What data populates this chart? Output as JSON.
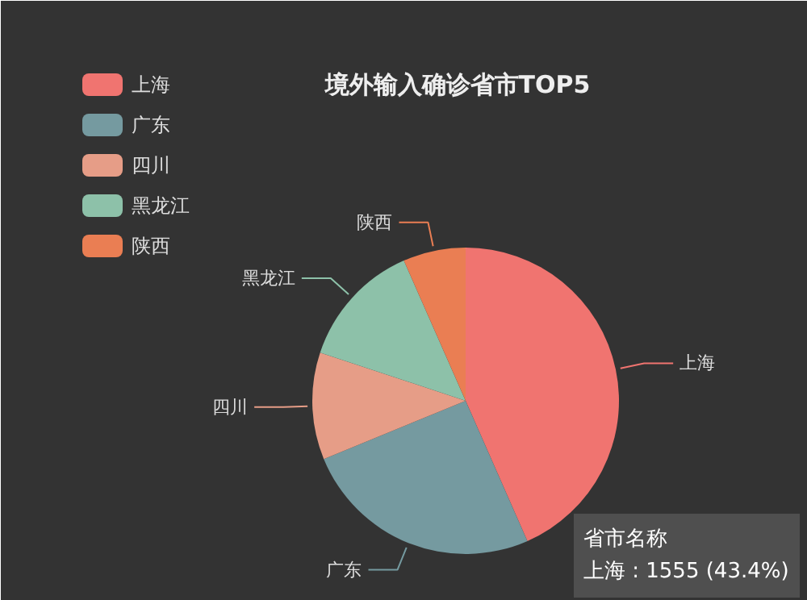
{
  "chart_data": {
    "type": "pie",
    "title": "境外输入确诊省市TOP5",
    "categories": [
      "上海",
      "广东",
      "四川",
      "黑龙江",
      "陕西"
    ],
    "values": [
      43.4,
      25.4,
      11.3,
      13.3,
      6.6
    ],
    "colors": [
      "#f07470",
      "#759aa0",
      "#e69d87",
      "#8dc1a9",
      "#ea7e53"
    ],
    "legend": "top left",
    "annotations": [
      "省市名称",
      "上海 : 1555 (43.4%)"
    ]
  }
}
